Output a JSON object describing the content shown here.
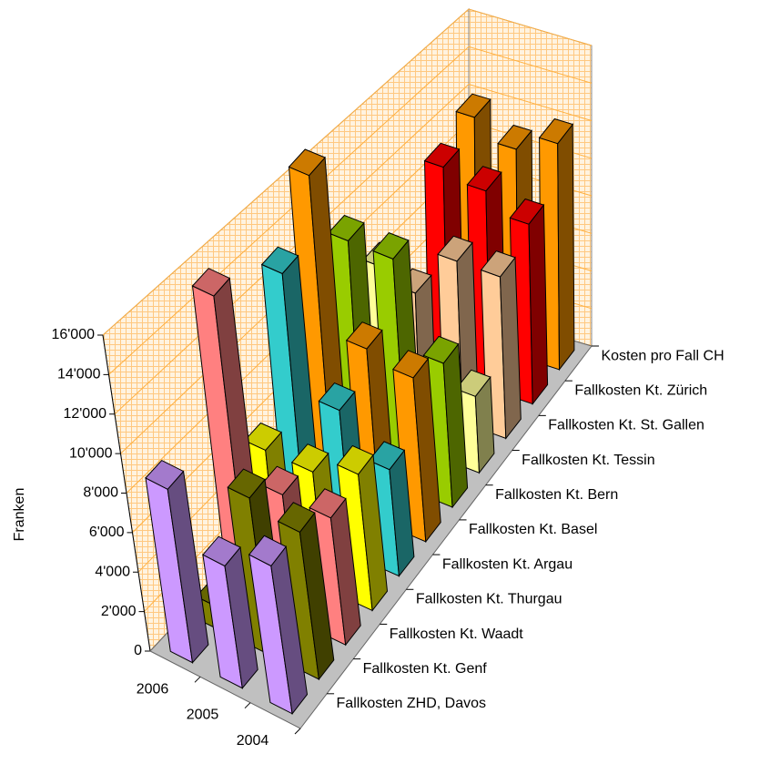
{
  "chart_data": {
    "type": "bar3d",
    "y_label": "Franken",
    "categories": [
      "2006",
      "2005",
      "2004"
    ],
    "ylim": [
      0,
      16000
    ],
    "yticks": [
      0,
      {
        "value": 2000,
        "label": "2'000"
      },
      {
        "value": 4000,
        "label": "4'000"
      },
      {
        "value": 6000,
        "label": "6'000"
      },
      {
        "value": 8000,
        "label": "8'000"
      },
      {
        "value": 10000,
        "label": "10'000"
      },
      {
        "value": 12000,
        "label": "12'000"
      },
      {
        "value": 14000,
        "label": "14'000"
      },
      {
        "value": 16000,
        "label": "16'000"
      }
    ],
    "grid": true,
    "series": [
      {
        "name": "Fallkosten ZHD, Davos",
        "color": "#cc99ff",
        "values": [
          8800,
          6200,
          7500
        ]
      },
      {
        "name": "Fallkosten Kt. Genf",
        "color": "#808000",
        "values": [
          1200,
          8000,
          7500
        ]
      },
      {
        "name": "Fallkosten Kt. Waadt",
        "color": "#ff8080",
        "values": [
          15500,
          6500,
          6500
        ]
      },
      {
        "name": "Fallkosten Kt. Thurgau",
        "color": "#ffff00",
        "values": [
          6000,
          6000,
          7000
        ]
      },
      {
        "name": "Fallkosten Kt. Argau",
        "color": "#33cccc",
        "values": [
          13500,
          7500,
          5500
        ]
      },
      {
        "name": "Fallkosten Kt. Basel",
        "color": "#ff9900",
        "values": [
          17000,
          9000,
          8500
        ]
      },
      {
        "name": "Fallkosten Kt. Bern",
        "color": "#99cc00",
        "values": [
          12000,
          12000,
          7500
        ]
      },
      {
        "name": "Fallkosten Kt. Tessin",
        "color": "#ffff99",
        "values": [
          9000,
          2000,
          4000
        ]
      },
      {
        "name": "Fallkosten Kt. St. Gallen",
        "color": "#ffcc99",
        "values": [
          6000,
          8500,
          8500
        ]
      },
      {
        "name": "Fallkosten Kt. Zürich",
        "color": "#ff0000",
        "values": [
          11000,
          10500,
          9500
        ]
      },
      {
        "name": "Kosten pro Fall CH",
        "color": "#ff9900",
        "values": [
          12000,
          11000,
          12000
        ]
      }
    ]
  }
}
